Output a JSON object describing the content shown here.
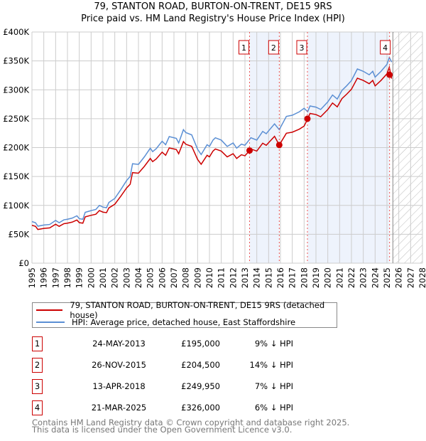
{
  "title_line1": "79, STANTON ROAD, BURTON-ON-TRENT, DE15 9RS",
  "title_line2": "Price paid vs. HM Land Registry's House Price Index (HPI)",
  "legend": {
    "property": "79, STANTON ROAD, BURTON-ON-TRENT, DE15 9RS (detached house)",
    "hpi": "HPI: Average price, detached house, East Staffordshire"
  },
  "colors": {
    "property": "#cc0000",
    "hpi": "#5b8fd4",
    "shade": "#eef3fc",
    "grid": "#cccccc"
  },
  "transactions": [
    {
      "num": "1",
      "date": "24-MAY-2013",
      "price": "£195,000",
      "pct": "9% ↓ HPI",
      "t": 2013.39,
      "value": 195000
    },
    {
      "num": "2",
      "date": "26-NOV-2015",
      "price": "£204,500",
      "pct": "14% ↓ HPI",
      "t": 2015.9,
      "value": 204500
    },
    {
      "num": "3",
      "date": "13-APR-2018",
      "price": "£249,950",
      "pct": "7% ↓ HPI",
      "t": 2018.28,
      "value": 249950
    },
    {
      "num": "4",
      "date": "21-MAR-2025",
      "price": "£326,000",
      "pct": "6% ↓ HPI",
      "t": 2025.22,
      "value": 326000
    }
  ],
  "footer_line1": "Contains HM Land Registry data © Crown copyright and database right 2025.",
  "footer_line2": "This data is licensed under the Open Government Licence v3.0.",
  "chart_data": {
    "type": "line",
    "xlim": [
      1995,
      2028
    ],
    "ylim": [
      0,
      400000
    ],
    "y_ticks": [
      0,
      50000,
      100000,
      150000,
      200000,
      250000,
      300000,
      350000,
      400000
    ],
    "y_tick_labels": [
      "£0",
      "£50K",
      "£100K",
      "£150K",
      "£200K",
      "£250K",
      "£300K",
      "£350K",
      "£400K"
    ],
    "x_ticks": [
      "1995",
      "1996",
      "1997",
      "1998",
      "1999",
      "2000",
      "2001",
      "2002",
      "2003",
      "2004",
      "2005",
      "2006",
      "2007",
      "2008",
      "2009",
      "2010",
      "2011",
      "2012",
      "2013",
      "2014",
      "2015",
      "2016",
      "2017",
      "2018",
      "2019",
      "2020",
      "2021",
      "2022",
      "2023",
      "2024",
      "2025",
      "2026",
      "2027",
      "2028"
    ],
    "forecast_from": 2025.5,
    "grid": true,
    "series": [
      {
        "name": "HPI: Average price, detached house, East Staffordshire",
        "points": [
          [
            1995,
            72000
          ],
          [
            1995.3,
            70000
          ],
          [
            1995.5,
            64000
          ],
          [
            1996,
            66000
          ],
          [
            1996.5,
            67000
          ],
          [
            1997,
            74000
          ],
          [
            1997.3,
            70000
          ],
          [
            1997.7,
            75000
          ],
          [
            1998,
            76000
          ],
          [
            1998.4,
            78000
          ],
          [
            1998.8,
            82000
          ],
          [
            1999,
            77000
          ],
          [
            1999.3,
            76000
          ],
          [
            1999.5,
            88000
          ],
          [
            2000,
            91000
          ],
          [
            2000.4,
            93000
          ],
          [
            2000.7,
            100000
          ],
          [
            2001,
            97000
          ],
          [
            2001.3,
            96000
          ],
          [
            2001.5,
            105000
          ],
          [
            2002,
            112000
          ],
          [
            2002.5,
            127000
          ],
          [
            2003,
            143000
          ],
          [
            2003.3,
            150000
          ],
          [
            2003.5,
            172000
          ],
          [
            2004,
            171000
          ],
          [
            2004.5,
            184000
          ],
          [
            2005,
            199000
          ],
          [
            2005.2,
            193000
          ],
          [
            2005.5,
            198000
          ],
          [
            2006,
            211000
          ],
          [
            2006.3,
            205000
          ],
          [
            2006.6,
            219000
          ],
          [
            2007.2,
            216000
          ],
          [
            2007.4,
            208000
          ],
          [
            2007.8,
            231000
          ],
          [
            2008,
            226000
          ],
          [
            2008.5,
            222000
          ],
          [
            2009,
            197000
          ],
          [
            2009.3,
            188000
          ],
          [
            2009.8,
            205000
          ],
          [
            2010,
            202000
          ],
          [
            2010.3,
            213000
          ],
          [
            2010.5,
            217000
          ],
          [
            2011,
            213000
          ],
          [
            2011.5,
            202000
          ],
          [
            2012,
            208000
          ],
          [
            2012.3,
            199000
          ],
          [
            2012.7,
            206000
          ],
          [
            2013,
            204000
          ],
          [
            2013.5,
            217000
          ],
          [
            2014,
            213000
          ],
          [
            2014.5,
            228000
          ],
          [
            2014.8,
            224000
          ],
          [
            2015,
            229000
          ],
          [
            2015.5,
            241000
          ],
          [
            2015.9,
            231000
          ],
          [
            2016.5,
            254000
          ],
          [
            2017,
            256000
          ],
          [
            2017.6,
            262000
          ],
          [
            2018,
            268000
          ],
          [
            2018.3,
            262000
          ],
          [
            2018.5,
            272000
          ],
          [
            2019,
            270000
          ],
          [
            2019.4,
            266000
          ],
          [
            2020,
            279000
          ],
          [
            2020.4,
            291000
          ],
          [
            2020.8,
            284000
          ],
          [
            2021.2,
            299000
          ],
          [
            2021.6,
            307000
          ],
          [
            2022,
            316000
          ],
          [
            2022.5,
            336000
          ],
          [
            2023,
            332000
          ],
          [
            2023.5,
            326000
          ],
          [
            2023.8,
            332000
          ],
          [
            2024,
            322000
          ],
          [
            2024.5,
            332000
          ],
          [
            2025,
            344000
          ],
          [
            2025.2,
            356000
          ],
          [
            2025.4,
            348000
          ]
        ]
      },
      {
        "name": "79, STANTON ROAD, BURTON-ON-TRENT, DE15 9RS (detached house)",
        "derived_from_hpi_and_transactions": true
      }
    ]
  }
}
